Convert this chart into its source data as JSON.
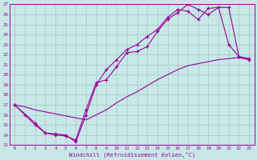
{
  "xlabel": "Windchill (Refroidissement éolien,°C)",
  "bg_color": "#c8e8e8",
  "line_color": "#990099",
  "grid_color": "#aacccc",
  "xlim": [
    -0.5,
    23.5
  ],
  "ylim": [
    13,
    27
  ],
  "xticks": [
    0,
    1,
    2,
    3,
    4,
    5,
    6,
    7,
    8,
    9,
    10,
    11,
    12,
    13,
    14,
    15,
    16,
    17,
    18,
    19,
    20,
    21,
    22,
    23
  ],
  "yticks": [
    13,
    14,
    15,
    16,
    17,
    18,
    19,
    20,
    21,
    22,
    23,
    24,
    25,
    26,
    27
  ],
  "line1_x": [
    0,
    1,
    2,
    3,
    4,
    5,
    6,
    7,
    8,
    9,
    10,
    11,
    12,
    13,
    14,
    15,
    16,
    17,
    18,
    19,
    20,
    21,
    22,
    23
  ],
  "line1_y": [
    17.0,
    16.8,
    16.5,
    16.3,
    16.1,
    15.9,
    15.7,
    15.5,
    16.0,
    16.5,
    17.2,
    17.8,
    18.3,
    18.9,
    19.5,
    20.0,
    20.5,
    20.9,
    21.1,
    21.3,
    21.5,
    21.6,
    21.7,
    21.5
  ],
  "line2_x": [
    0,
    2,
    3,
    4,
    5,
    6,
    7,
    8,
    9,
    10,
    11,
    12,
    13,
    14,
    15,
    16,
    17,
    18,
    19,
    20,
    21,
    22,
    23
  ],
  "line2_y": [
    17.0,
    15.2,
    14.2,
    14.0,
    13.9,
    13.5,
    16.5,
    19.2,
    19.5,
    20.8,
    22.2,
    22.3,
    22.8,
    24.3,
    25.5,
    26.2,
    27.0,
    26.5,
    26.0,
    26.7,
    26.7,
    21.8,
    21.5
  ],
  "line3_x": [
    0,
    1,
    2,
    3,
    4,
    5,
    6,
    7,
    8,
    9,
    10,
    11,
    12,
    13,
    14,
    15,
    16,
    17,
    18,
    19,
    20,
    21,
    22,
    23
  ],
  "line3_y": [
    17.0,
    16.0,
    15.0,
    14.2,
    14.1,
    14.0,
    13.3,
    16.0,
    19.0,
    20.5,
    21.5,
    22.5,
    23.0,
    23.8,
    24.5,
    25.7,
    26.5,
    26.3,
    25.5,
    26.6,
    26.7,
    23.0,
    21.8,
    21.6
  ]
}
